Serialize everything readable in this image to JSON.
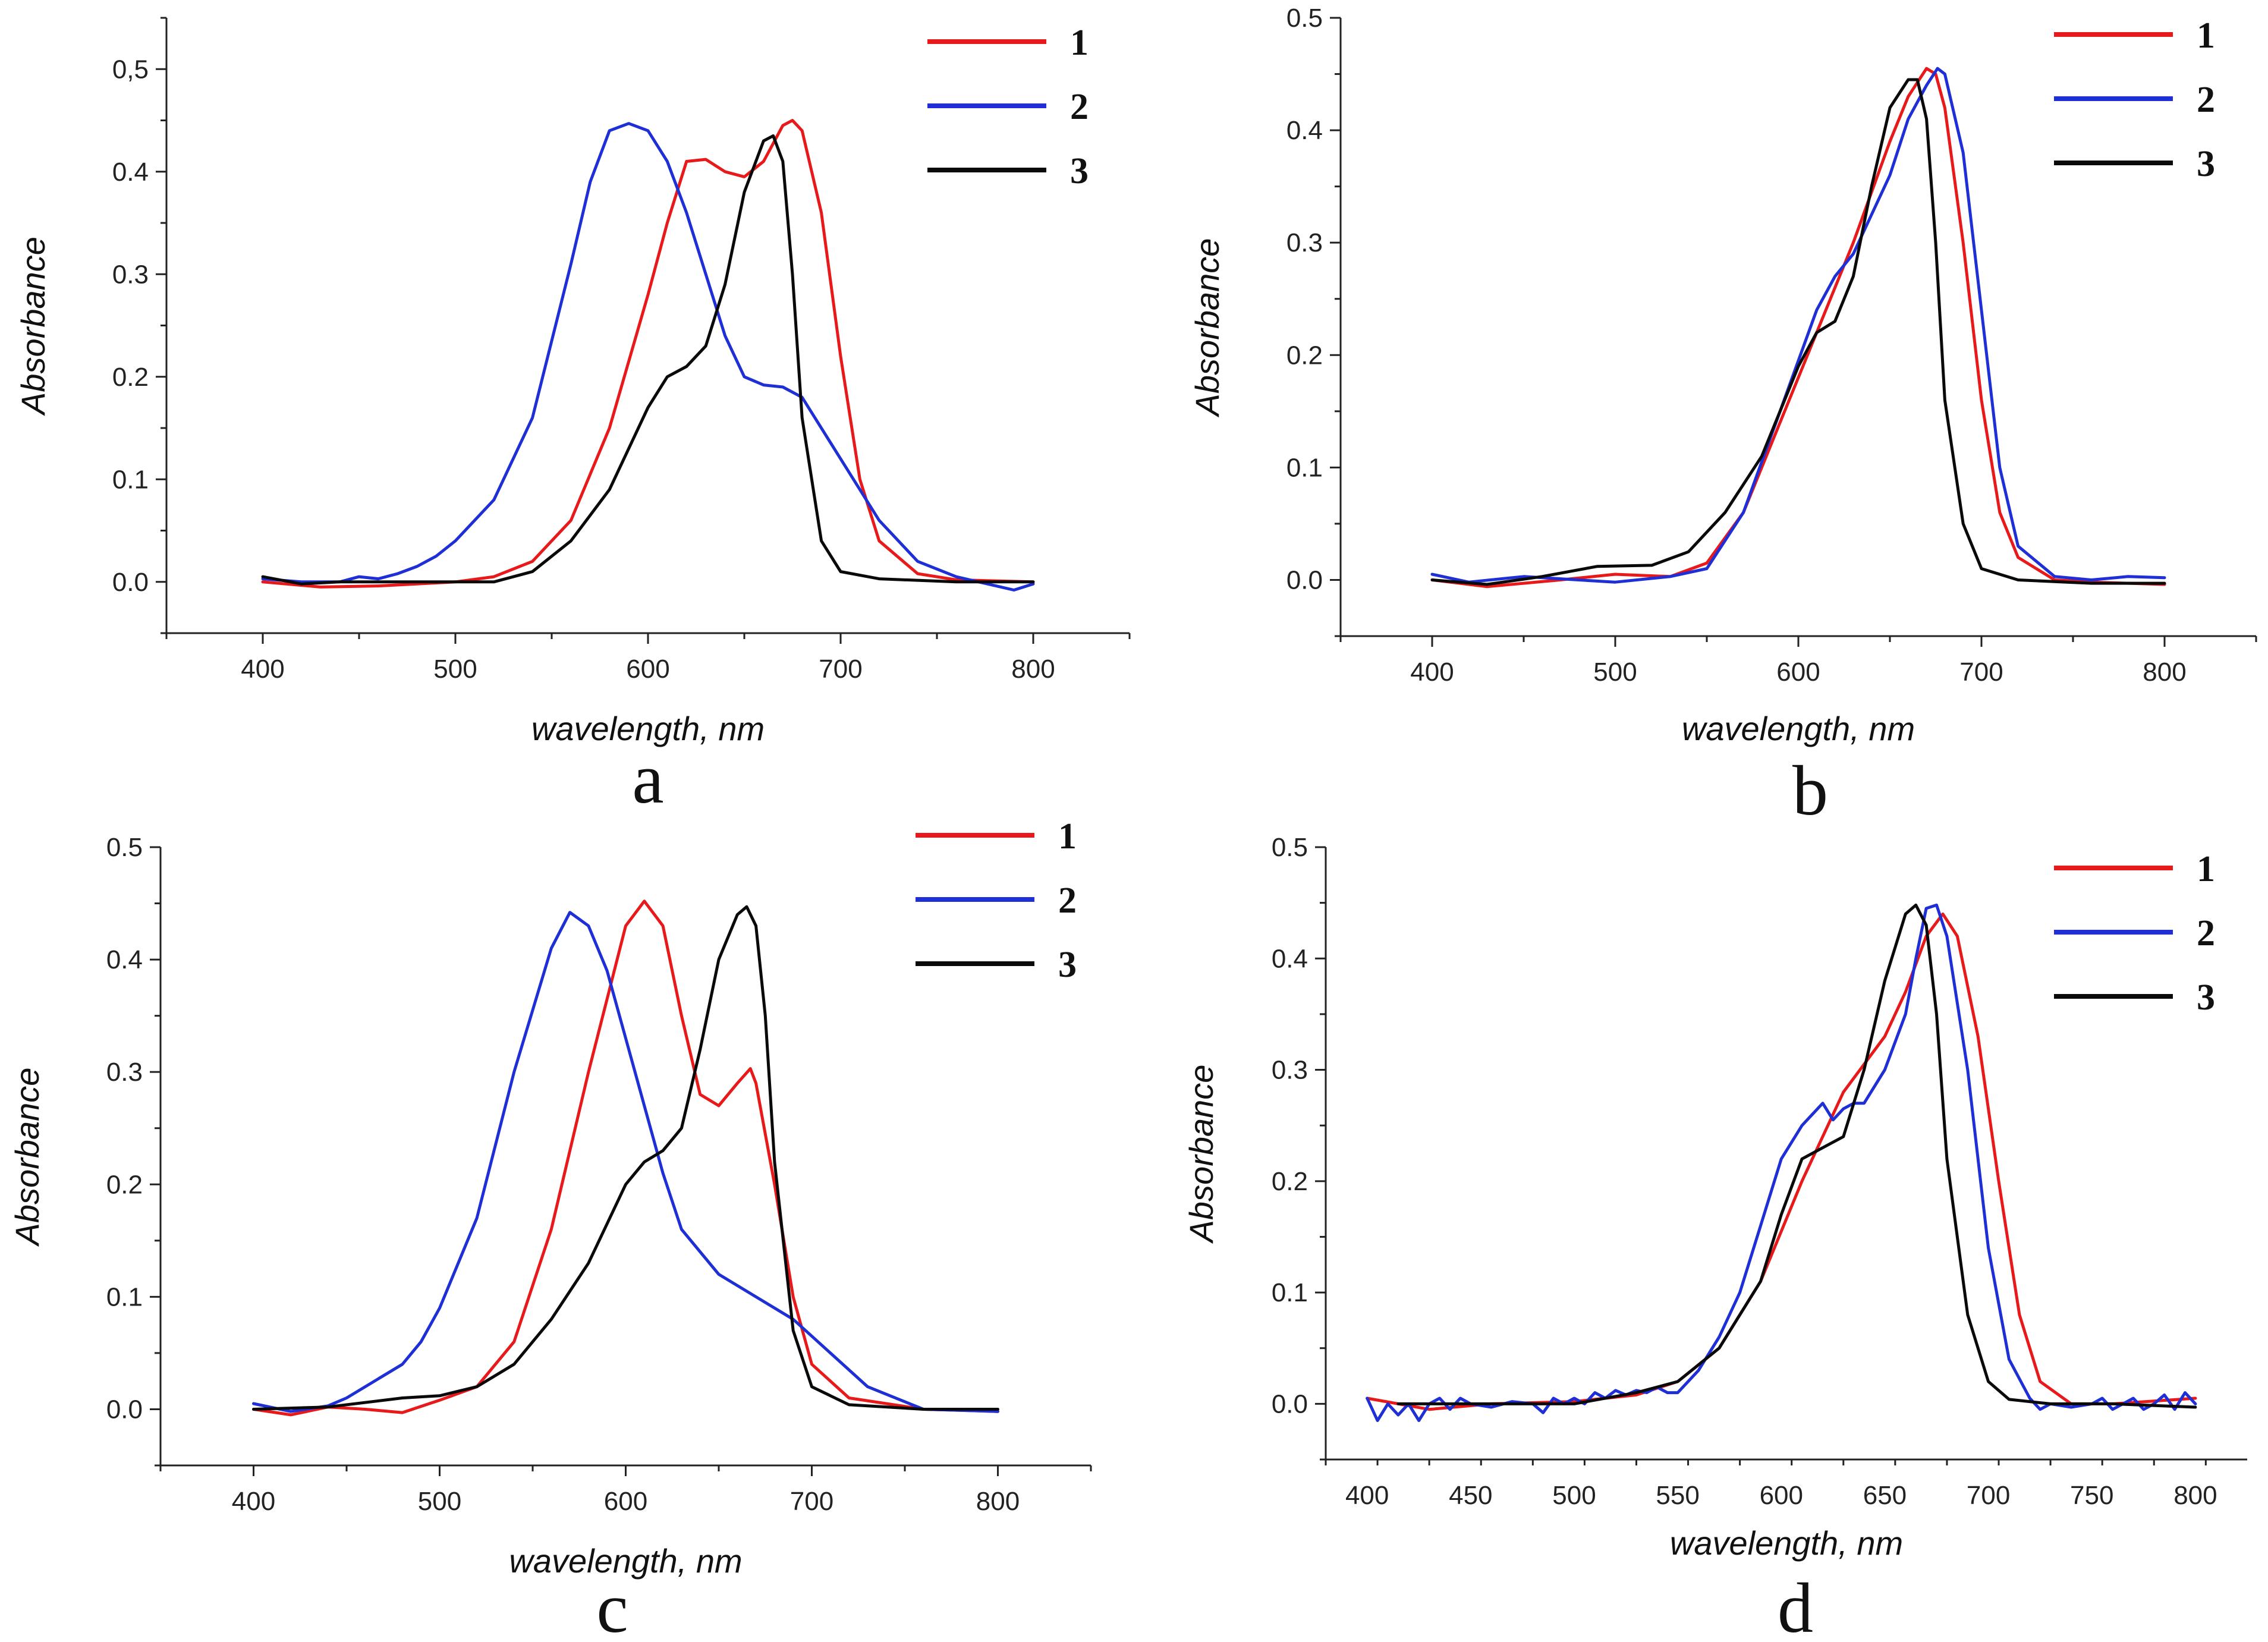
{
  "colors": {
    "series1": "#e8191a",
    "series2": "#1f2fd6",
    "series3": "#0a0a0a",
    "axis": "#222222"
  },
  "chart_data": [
    {
      "panel": "a",
      "type": "line",
      "xlabel": "wavelength, nm",
      "ylabel": "Absorbance",
      "xlim": [
        350,
        850
      ],
      "ylim": [
        -0.05,
        0.55
      ],
      "xticks": [
        400,
        500,
        600,
        700,
        800
      ],
      "yticks": [
        0.0,
        0.1,
        0.2,
        0.3,
        0.4,
        0.5
      ],
      "ytick_labels": [
        "0.0",
        "0.1",
        "0.2",
        "0.3",
        "0.4",
        "0,5"
      ],
      "legend_position": "top-right",
      "series": [
        {
          "name": "1",
          "color": "#e8191a",
          "x": [
            400,
            430,
            460,
            500,
            520,
            540,
            560,
            580,
            600,
            610,
            620,
            630,
            640,
            650,
            660,
            670,
            675,
            680,
            690,
            700,
            710,
            720,
            740,
            760,
            800
          ],
          "y": [
            0.0,
            -0.005,
            -0.004,
            0.0,
            0.005,
            0.02,
            0.06,
            0.15,
            0.28,
            0.35,
            0.41,
            0.412,
            0.4,
            0.395,
            0.41,
            0.445,
            0.45,
            0.44,
            0.36,
            0.22,
            0.1,
            0.04,
            0.008,
            0.002,
            0.0
          ]
        },
        {
          "name": "2",
          "color": "#1f2fd6",
          "x": [
            400,
            420,
            440,
            450,
            460,
            470,
            480,
            490,
            500,
            520,
            540,
            560,
            570,
            580,
            590,
            600,
            610,
            620,
            630,
            640,
            650,
            660,
            670,
            680,
            700,
            720,
            740,
            760,
            790,
            800
          ],
          "y": [
            0.003,
            0.0,
            0.0,
            0.005,
            0.003,
            0.008,
            0.015,
            0.025,
            0.04,
            0.08,
            0.16,
            0.31,
            0.39,
            0.44,
            0.447,
            0.44,
            0.41,
            0.36,
            0.3,
            0.24,
            0.2,
            0.192,
            0.19,
            0.18,
            0.12,
            0.06,
            0.02,
            0.005,
            -0.008,
            -0.002
          ]
        },
        {
          "name": "3",
          "color": "#0a0a0a",
          "x": [
            400,
            420,
            440,
            460,
            480,
            500,
            520,
            540,
            560,
            580,
            600,
            610,
            620,
            630,
            640,
            650,
            660,
            665,
            670,
            675,
            680,
            690,
            700,
            720,
            760,
            800
          ],
          "y": [
            0.005,
            -0.002,
            0.0,
            0.0,
            0.0,
            0.0,
            0.0,
            0.01,
            0.04,
            0.09,
            0.17,
            0.2,
            0.21,
            0.23,
            0.29,
            0.38,
            0.43,
            0.435,
            0.41,
            0.3,
            0.16,
            0.04,
            0.01,
            0.003,
            0.0,
            0.0
          ]
        }
      ]
    },
    {
      "panel": "b",
      "type": "line",
      "xlabel": "wavelength, nm",
      "ylabel": "Absorbance",
      "xlim": [
        350,
        850
      ],
      "ylim": [
        -0.05,
        0.5
      ],
      "xticks": [
        400,
        500,
        600,
        700,
        800
      ],
      "yticks": [
        0.0,
        0.1,
        0.2,
        0.3,
        0.4,
        0.5
      ],
      "ytick_labels": [
        "0.0",
        "0.1",
        "0.2",
        "0.3",
        "0.4",
        "0.5"
      ],
      "legend_position": "top-right",
      "series": [
        {
          "name": "1",
          "color": "#e8191a",
          "x": [
            400,
            430,
            470,
            500,
            530,
            550,
            570,
            590,
            610,
            630,
            650,
            660,
            670,
            675,
            680,
            690,
            700,
            710,
            720,
            740,
            760,
            800
          ],
          "y": [
            0.0,
            -0.006,
            0.0,
            0.005,
            0.003,
            0.015,
            0.06,
            0.14,
            0.22,
            0.3,
            0.39,
            0.43,
            0.455,
            0.45,
            0.42,
            0.3,
            0.16,
            0.06,
            0.02,
            0.0,
            -0.002,
            -0.004
          ]
        },
        {
          "name": "2",
          "color": "#1f2fd6",
          "x": [
            400,
            420,
            450,
            480,
            500,
            530,
            550,
            570,
            590,
            610,
            620,
            630,
            650,
            660,
            670,
            676,
            680,
            690,
            700,
            710,
            720,
            740,
            760,
            780,
            800
          ],
          "y": [
            0.005,
            -0.002,
            0.003,
            0.0,
            -0.002,
            0.003,
            0.01,
            0.06,
            0.15,
            0.24,
            0.27,
            0.29,
            0.36,
            0.41,
            0.44,
            0.455,
            0.45,
            0.38,
            0.24,
            0.1,
            0.03,
            0.003,
            0.0,
            0.003,
            0.002
          ]
        },
        {
          "name": "3",
          "color": "#0a0a0a",
          "x": [
            400,
            430,
            460,
            490,
            520,
            540,
            560,
            580,
            600,
            610,
            620,
            630,
            640,
            650,
            660,
            665,
            670,
            675,
            680,
            690,
            700,
            720,
            760,
            800
          ],
          "y": [
            0.0,
            -0.004,
            0.003,
            0.012,
            0.013,
            0.025,
            0.06,
            0.11,
            0.19,
            0.22,
            0.23,
            0.27,
            0.35,
            0.42,
            0.445,
            0.445,
            0.41,
            0.3,
            0.16,
            0.05,
            0.01,
            0.0,
            -0.003,
            -0.003
          ]
        }
      ]
    },
    {
      "panel": "c",
      "type": "line",
      "xlabel": "wavelength, nm",
      "ylabel": "Absorbance",
      "xlim": [
        350,
        850
      ],
      "ylim": [
        -0.05,
        0.5
      ],
      "xticks": [
        400,
        500,
        600,
        700,
        800
      ],
      "yticks": [
        0.0,
        0.1,
        0.2,
        0.3,
        0.4,
        0.5
      ],
      "ytick_labels": [
        "0.0",
        "0.1",
        "0.2",
        "0.3",
        "0.4",
        "0.5"
      ],
      "legend_position": "top-right",
      "series": [
        {
          "name": "1",
          "color": "#e8191a",
          "x": [
            400,
            420,
            440,
            460,
            480,
            500,
            520,
            540,
            560,
            580,
            600,
            610,
            620,
            630,
            640,
            650,
            660,
            667,
            670,
            680,
            690,
            700,
            720,
            760,
            800
          ],
          "y": [
            0.0,
            -0.005,
            0.002,
            0.0,
            -0.003,
            0.008,
            0.02,
            0.06,
            0.16,
            0.3,
            0.43,
            0.452,
            0.43,
            0.35,
            0.28,
            0.27,
            0.29,
            0.303,
            0.29,
            0.2,
            0.1,
            0.04,
            0.01,
            0.0,
            -0.002
          ]
        },
        {
          "name": "2",
          "color": "#1f2fd6",
          "x": [
            400,
            420,
            440,
            450,
            460,
            470,
            480,
            490,
            500,
            520,
            540,
            560,
            570,
            580,
            590,
            600,
            610,
            620,
            630,
            650,
            670,
            690,
            710,
            730,
            760,
            800
          ],
          "y": [
            0.005,
            -0.002,
            0.003,
            0.01,
            0.02,
            0.03,
            0.04,
            0.06,
            0.09,
            0.17,
            0.3,
            0.41,
            0.442,
            0.43,
            0.39,
            0.33,
            0.27,
            0.21,
            0.16,
            0.12,
            0.1,
            0.08,
            0.05,
            0.02,
            0.0,
            -0.002
          ]
        },
        {
          "name": "3",
          "color": "#0a0a0a",
          "x": [
            400,
            440,
            480,
            500,
            520,
            540,
            560,
            580,
            600,
            610,
            620,
            630,
            640,
            650,
            660,
            665,
            670,
            675,
            680,
            690,
            700,
            720,
            760,
            800
          ],
          "y": [
            0.0,
            0.002,
            0.01,
            0.012,
            0.02,
            0.04,
            0.08,
            0.13,
            0.2,
            0.22,
            0.23,
            0.25,
            0.32,
            0.4,
            0.44,
            0.447,
            0.43,
            0.35,
            0.22,
            0.07,
            0.02,
            0.004,
            0.0,
            0.0
          ]
        }
      ]
    },
    {
      "panel": "d",
      "type": "line",
      "xlabel": "wavelength, nm",
      "ylabel": "Absorbance",
      "xlim": [
        380,
        825
      ],
      "ylim": [
        -0.05,
        0.5
      ],
      "xticks": [
        400,
        450,
        500,
        550,
        600,
        650,
        700,
        750,
        800
      ],
      "yticks": [
        0.0,
        0.1,
        0.2,
        0.3,
        0.4,
        0.5
      ],
      "ytick_labels": [
        "0.0",
        "0.1",
        "0.2",
        "0.3",
        "0.4",
        "0.5"
      ],
      "legend_position": "top-right",
      "series": [
        {
          "name": "1",
          "color": "#e8191a",
          "x": [
            400,
            430,
            460,
            500,
            530,
            550,
            570,
            590,
            610,
            630,
            650,
            660,
            670,
            678,
            685,
            695,
            705,
            715,
            725,
            740,
            760,
            800
          ],
          "y": [
            0.005,
            -0.005,
            0.0,
            0.002,
            0.008,
            0.02,
            0.05,
            0.11,
            0.2,
            0.28,
            0.33,
            0.37,
            0.42,
            0.44,
            0.42,
            0.33,
            0.2,
            0.08,
            0.02,
            0.0,
            0.0,
            0.005
          ]
        },
        {
          "name": "2",
          "color": "#1f2fd6",
          "x": [
            400,
            405,
            410,
            415,
            420,
            425,
            430,
            435,
            440,
            445,
            450,
            460,
            470,
            480,
            485,
            490,
            495,
            500,
            505,
            510,
            515,
            520,
            525,
            530,
            535,
            540,
            545,
            550,
            560,
            570,
            580,
            590,
            600,
            610,
            620,
            625,
            630,
            635,
            640,
            650,
            660,
            665,
            670,
            675,
            680,
            690,
            700,
            710,
            720,
            725,
            730,
            740,
            750,
            755,
            760,
            765,
            770,
            775,
            780,
            785,
            790,
            795,
            800
          ],
          "y": [
            0.005,
            -0.015,
            0.0,
            -0.01,
            0.0,
            -0.015,
            0.0,
            0.005,
            -0.005,
            0.005,
            0.0,
            -0.003,
            0.002,
            0.0,
            -0.008,
            0.005,
            0.0,
            0.005,
            0.0,
            0.01,
            0.005,
            0.012,
            0.008,
            0.012,
            0.01,
            0.015,
            0.01,
            0.01,
            0.03,
            0.06,
            0.1,
            0.16,
            0.22,
            0.25,
            0.27,
            0.255,
            0.265,
            0.27,
            0.27,
            0.3,
            0.35,
            0.4,
            0.445,
            0.448,
            0.42,
            0.3,
            0.14,
            0.04,
            0.005,
            -0.005,
            0.0,
            -0.003,
            0.0,
            0.005,
            -0.005,
            0.0,
            0.005,
            -0.005,
            0.0,
            0.008,
            -0.005,
            0.01,
            0.0
          ]
        },
        {
          "name": "3",
          "color": "#0a0a0a",
          "x": [
            415,
            450,
            500,
            530,
            550,
            570,
            590,
            600,
            610,
            620,
            630,
            640,
            650,
            660,
            665,
            670,
            675,
            680,
            690,
            700,
            710,
            730,
            760,
            800
          ],
          "y": [
            0.0,
            0.0,
            0.0,
            0.01,
            0.02,
            0.05,
            0.11,
            0.17,
            0.22,
            0.23,
            0.24,
            0.3,
            0.38,
            0.44,
            0.448,
            0.43,
            0.35,
            0.22,
            0.08,
            0.02,
            0.004,
            0.0,
            0.0,
            -0.003
          ]
        }
      ]
    }
  ]
}
